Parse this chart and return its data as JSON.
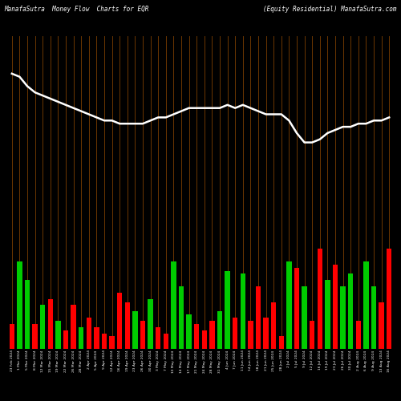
{
  "title_left": "ManafaSutra  Money Flow  Charts for EQR",
  "title_right": "(Equity Residential) ManafaSutra.com",
  "bg_color": "#000000",
  "bar_color_red": "#ff0000",
  "bar_color_green": "#00cc00",
  "line_color": "#ffffff",
  "grid_color": "#8B4500",
  "categories": [
    "23 Feb 2024",
    "1 Mar 2024",
    "5 Mar 2024",
    "8 Mar 2024",
    "12 Mar 2024",
    "15 Mar 2024",
    "19 Mar 2024",
    "22 Mar 2024",
    "26 Mar 2024",
    "28 Mar 2024",
    "2 Apr 2024",
    "5 Apr 2024",
    "9 Apr 2024",
    "12 Apr 2024",
    "16 Apr 2024",
    "19 Apr 2024",
    "23 Apr 2024",
    "26 Apr 2024",
    "30 Apr 2024",
    "3 May 2024",
    "7 May 2024",
    "10 May 2024",
    "14 May 2024",
    "17 May 2024",
    "21 May 2024",
    "24 May 2024",
    "28 May 2024",
    "31 May 2024",
    "4 Jun 2024",
    "7 Jun 2024",
    "11 Jun 2024",
    "14 Jun 2024",
    "18 Jun 2024",
    "21 Jun 2024",
    "25 Jun 2024",
    "28 Jun 2024",
    "2 Jul 2024",
    "5 Jul 2024",
    "9 Jul 2024",
    "12 Jul 2024",
    "16 Jul 2024",
    "19 Jul 2024",
    "23 Jul 2024",
    "26 Jul 2024",
    "30 Jul 2024",
    "2 Aug 2024",
    "6 Aug 2024",
    "9 Aug 2024",
    "13 Aug 2024",
    "16 Aug 2024"
  ],
  "bar_values": [
    8,
    28,
    22,
    8,
    14,
    16,
    9,
    6,
    14,
    7,
    10,
    7,
    5,
    4,
    18,
    15,
    12,
    9,
    16,
    7,
    5,
    28,
    20,
    11,
    8,
    6,
    9,
    12,
    25,
    10,
    24,
    9,
    20,
    10,
    15,
    4,
    28,
    26,
    20,
    9,
    32,
    22,
    27,
    20,
    24,
    9,
    28,
    20,
    15,
    32
  ],
  "bar_colors": [
    "red",
    "green",
    "green",
    "red",
    "green",
    "red",
    "green",
    "red",
    "red",
    "green",
    "red",
    "red",
    "red",
    "red",
    "red",
    "red",
    "green",
    "red",
    "green",
    "red",
    "red",
    "green",
    "green",
    "green",
    "red",
    "red",
    "red",
    "green",
    "green",
    "red",
    "green",
    "red",
    "red",
    "red",
    "red",
    "red",
    "green",
    "red",
    "green",
    "red",
    "red",
    "green",
    "red",
    "green",
    "green",
    "red",
    "green",
    "green",
    "red",
    "red"
  ],
  "line_values": [
    88,
    87,
    84,
    82,
    81,
    80,
    79,
    78,
    77,
    76,
    75,
    74,
    73,
    73,
    72,
    72,
    72,
    72,
    73,
    74,
    74,
    75,
    76,
    77,
    77,
    77,
    77,
    77,
    78,
    77,
    78,
    77,
    76,
    75,
    75,
    75,
    73,
    69,
    66,
    66,
    67,
    69,
    70,
    71,
    71,
    72,
    72,
    73,
    73,
    74
  ],
  "bar_ylim": [
    0,
    100
  ],
  "line_ylim": [
    50,
    100
  ],
  "figsize": [
    5.0,
    5.0
  ],
  "dpi": 100,
  "title_fontsize": 5.5,
  "tick_fontsize": 3.2
}
